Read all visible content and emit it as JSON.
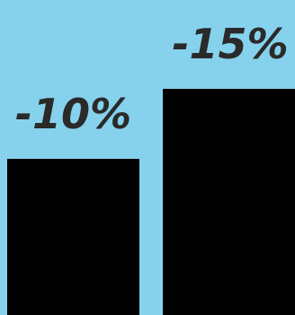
{
  "chart_data": {
    "type": "bar",
    "categories": [
      "",
      ""
    ],
    "values": [
      -10,
      -15
    ],
    "data_labels": [
      "-10%",
      "-15%"
    ],
    "title": "",
    "xlabel": "",
    "ylabel": "",
    "grid": false,
    "legend": "none"
  },
  "colors": {
    "background": "#86d2ec",
    "bar": "#000000",
    "label": "#2a2a2a"
  }
}
